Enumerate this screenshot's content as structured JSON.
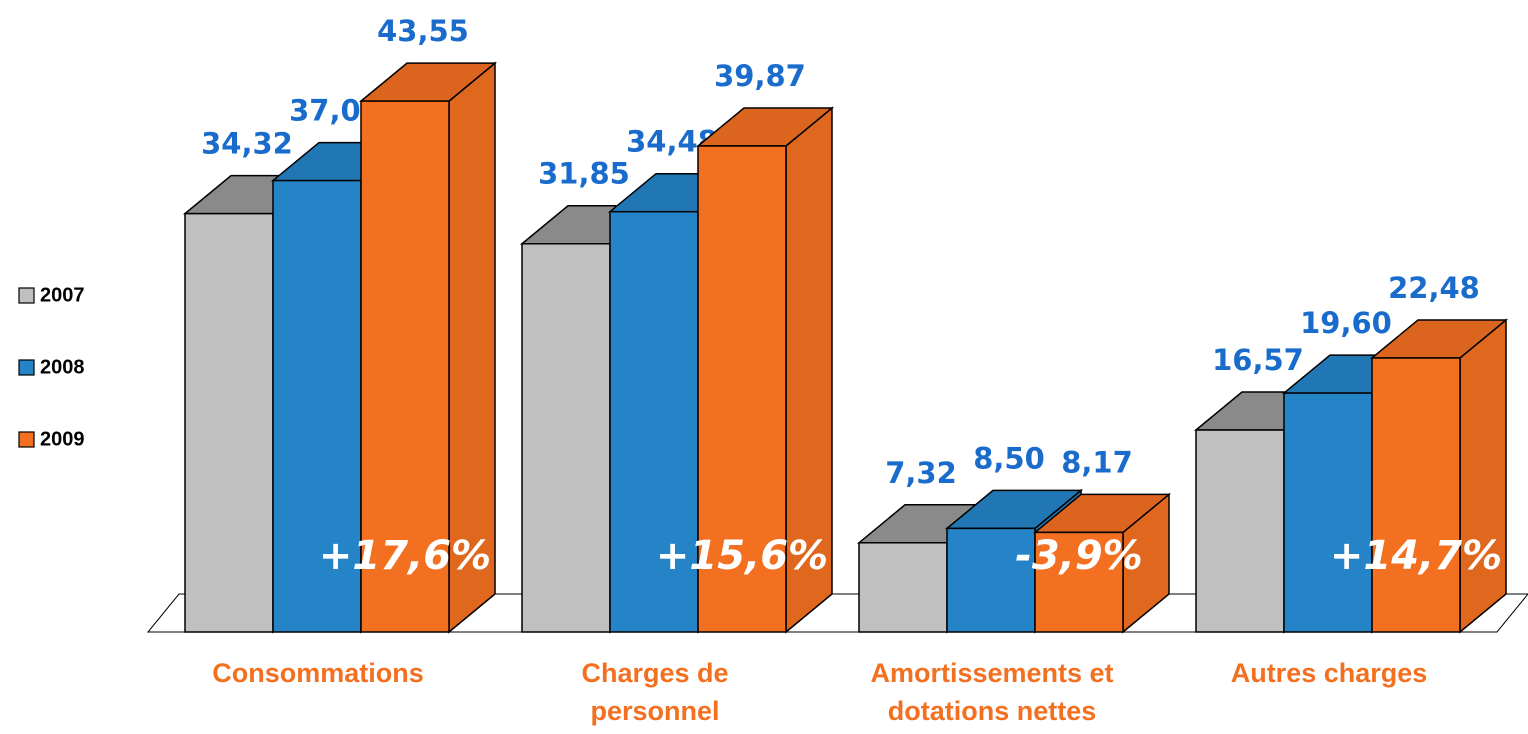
{
  "chart_data": {
    "type": "bar3d",
    "categories": [
      "Consommations",
      "Charges de personnel",
      "Amortissements et dotations nettes",
      "Autres charges"
    ],
    "series": [
      {
        "name": "2007",
        "color": "#c0c0c0",
        "values": [
          34.32,
          31.85,
          7.32,
          16.57
        ],
        "value_labels": [
          "34,32",
          "31,85",
          "7,32",
          "16,57"
        ]
      },
      {
        "name": "2008",
        "color": "#2584c8",
        "values": [
          37.03,
          34.48,
          8.5,
          19.6
        ],
        "value_labels": [
          "37,03",
          "34,48",
          "8,50",
          "19,60"
        ]
      },
      {
        "name": "2009",
        "color": "#f37021",
        "values": [
          43.55,
          39.87,
          8.17,
          22.48
        ],
        "value_labels": [
          "43,55",
          "39,87",
          "8,17",
          "22,48"
        ]
      }
    ],
    "annotations": [
      "+17,6%",
      "+15,6%",
      "-3,9%",
      "+14,7%"
    ],
    "legend": "left"
  }
}
